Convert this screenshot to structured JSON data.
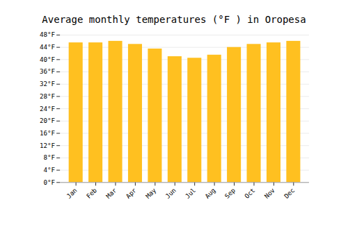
{
  "chart_data": {
    "type": "bar",
    "title": "Average monthly temperatures (°F ) in Oropesa",
    "categories": [
      "Jan",
      "Feb",
      "Mar",
      "Apr",
      "May",
      "Jun",
      "Jul",
      "Aug",
      "Sep",
      "Oct",
      "Nov",
      "Dec"
    ],
    "values": [
      45.5,
      45.5,
      46.0,
      45.0,
      43.5,
      41.0,
      40.5,
      41.5,
      44.0,
      45.0,
      45.5,
      46.0
    ],
    "color": "#FFC020",
    "ylim": [
      0,
      48
    ],
    "yticks": [
      {
        "value": 0,
        "label": "0°F"
      },
      {
        "value": 4,
        "label": "4°F"
      },
      {
        "value": 8,
        "label": "8°F"
      },
      {
        "value": 12,
        "label": "12°F"
      },
      {
        "value": 16,
        "label": "16°F"
      },
      {
        "value": 20,
        "label": "20°F"
      },
      {
        "value": 24,
        "label": "24°F"
      },
      {
        "value": 28,
        "label": "28°F"
      },
      {
        "value": 32,
        "label": "32°F"
      },
      {
        "value": 36,
        "label": "36°F"
      },
      {
        "value": 40,
        "label": "40°F"
      },
      {
        "value": 44,
        "label": "44°F"
      },
      {
        "value": 48,
        "label": "48°F"
      }
    ],
    "grid": true
  }
}
